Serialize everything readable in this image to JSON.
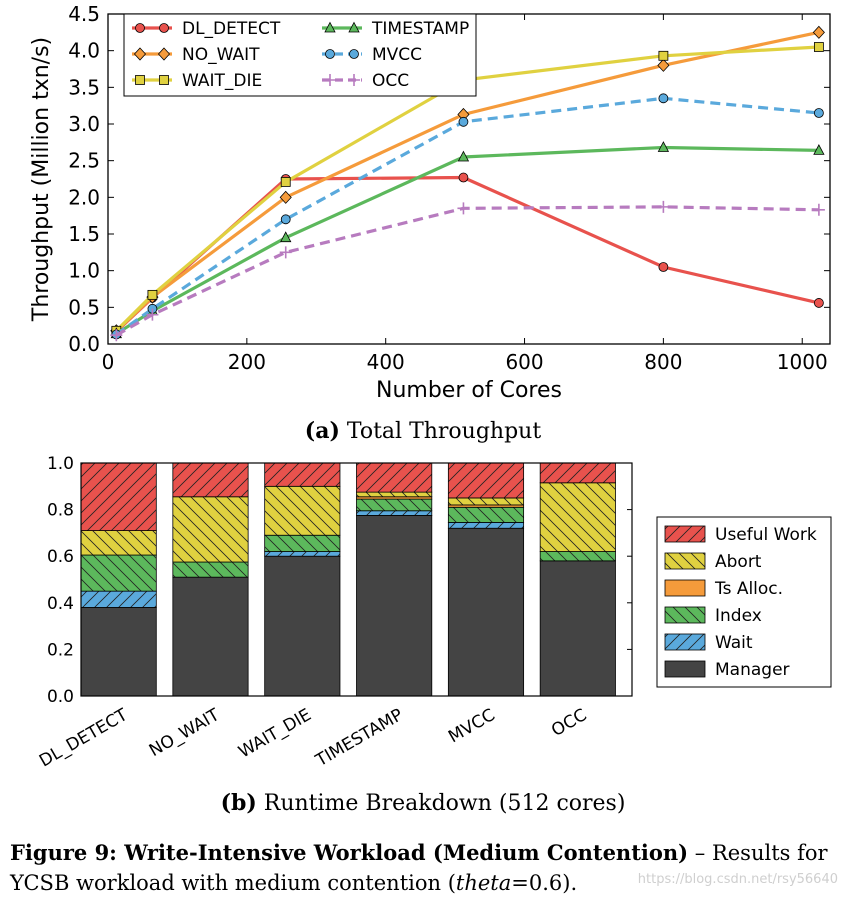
{
  "chart_data": [
    {
      "id": "a",
      "type": "line",
      "xlabel": "Number of Cores",
      "ylabel": "Throughput (Million txn/s)",
      "xlim": [
        0,
        1040
      ],
      "ylim": [
        0,
        4.5
      ],
      "xticks": [
        0,
        200,
        400,
        600,
        800,
        1000
      ],
      "yticks": [
        0.0,
        0.5,
        1.0,
        1.5,
        2.0,
        2.5,
        3.0,
        3.5,
        4.0,
        4.5
      ],
      "ytick_labels": [
        "0.0",
        "0.5",
        "1.0",
        "1.5",
        "2.0",
        "2.5",
        "3.0",
        "3.5",
        "4.0",
        "4.5"
      ],
      "grid": false,
      "legend_position": "top-left",
      "x": [
        12,
        64,
        256,
        512,
        800,
        1024
      ],
      "series": [
        {
          "name": "DL_DETECT",
          "color": "#e8524d",
          "dash": "solid",
          "marker": "circle",
          "values": [
            0.17,
            0.63,
            2.25,
            2.27,
            1.05,
            0.56
          ]
        },
        {
          "name": "NO_WAIT",
          "color": "#f59b3b",
          "dash": "solid",
          "marker": "diamond",
          "values": [
            0.18,
            0.64,
            2.0,
            3.13,
            3.8,
            4.25
          ]
        },
        {
          "name": "WAIT_DIE",
          "color": "#e0d140",
          "dash": "solid",
          "marker": "square",
          "values": [
            0.18,
            0.67,
            2.21,
            3.6,
            3.93,
            4.05
          ]
        },
        {
          "name": "TIMESTAMP",
          "color": "#5cb85c",
          "dash": "solid",
          "marker": "triangle",
          "values": [
            0.14,
            0.45,
            1.45,
            2.55,
            2.68,
            2.64
          ]
        },
        {
          "name": "MVCC",
          "color": "#5aa9dc",
          "dash": "dashed",
          "marker": "circle",
          "values": [
            0.13,
            0.48,
            1.7,
            3.03,
            3.35,
            3.15
          ]
        },
        {
          "name": "OCC",
          "color": "#b77bbf",
          "dash": "dashed",
          "marker": "plus",
          "values": [
            0.12,
            0.4,
            1.25,
            1.85,
            1.87,
            1.83
          ]
        }
      ]
    },
    {
      "id": "b",
      "type": "bar",
      "stacked": true,
      "categories": [
        "DL_DETECT",
        "NO_WAIT",
        "WAIT_DIE",
        "TIMESTAMP",
        "MVCC",
        "OCC"
      ],
      "ylim": [
        0,
        1.0
      ],
      "yticks": [
        0.0,
        0.2,
        0.4,
        0.6,
        0.8,
        1.0
      ],
      "ytick_labels": [
        "0.0",
        "0.2",
        "0.4",
        "0.6",
        "0.8",
        "1.0"
      ],
      "legend_position": "right",
      "series": [
        {
          "name": "Manager",
          "color": "#444444",
          "hatch": "none",
          "values": [
            0.38,
            0.51,
            0.6,
            0.775,
            0.72,
            0.58
          ]
        },
        {
          "name": "Wait",
          "color": "#5aa9dc",
          "hatch": "diag-right",
          "values": [
            0.07,
            0.0,
            0.02,
            0.02,
            0.025,
            0.0
          ]
        },
        {
          "name": "Index",
          "color": "#5cb85c",
          "hatch": "diag-left",
          "values": [
            0.155,
            0.065,
            0.07,
            0.05,
            0.065,
            0.04
          ]
        },
        {
          "name": "Ts Alloc.",
          "color": "#f59b3b",
          "hatch": "none",
          "values": [
            0.0,
            0.0,
            0.0,
            0.01,
            0.01,
            0.0
          ]
        },
        {
          "name": "Abort",
          "color": "#e0d140",
          "hatch": "diag-left",
          "values": [
            0.105,
            0.28,
            0.21,
            0.02,
            0.03,
            0.295
          ]
        },
        {
          "name": "Useful Work",
          "color": "#e8524d",
          "hatch": "diag-right",
          "values": [
            0.29,
            0.145,
            0.1,
            0.125,
            0.15,
            0.085
          ]
        }
      ],
      "legend_order": [
        "Useful Work",
        "Abort",
        "Ts Alloc.",
        "Index",
        "Wait",
        "Manager"
      ]
    }
  ],
  "captions": {
    "a_bold": "(a)",
    "a_text": " Total Throughput",
    "b_bold": "(b)",
    "b_text": " Runtime Breakdown (512 cores)"
  },
  "figure_caption": {
    "bold": "Figure 9: Write-Intensive Workload (Medium Contention)",
    "text1": " – Results for YCSB workload with medium contention (",
    "italic": "theta",
    "text2": "=0.6)."
  },
  "watermark": "https://blog.csdn.net/rsy56640"
}
